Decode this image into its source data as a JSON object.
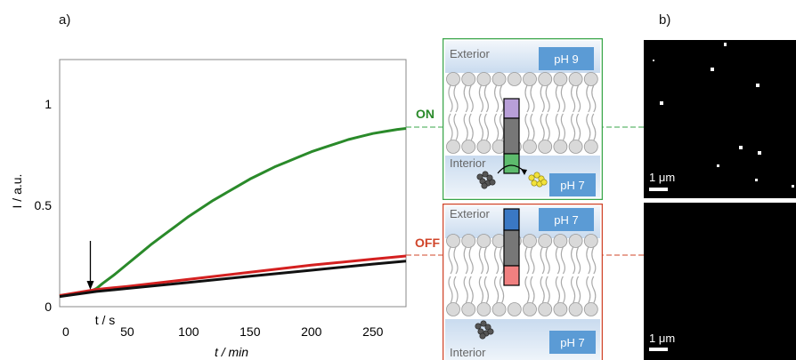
{
  "panel_a_label": "a)",
  "panel_b_label": "b)",
  "chart_data": {
    "type": "line",
    "xlabel": "t / min",
    "ylabel": "I / a.u.",
    "x_ticks": [
      0,
      50,
      100,
      150,
      200,
      250
    ],
    "y_ticks": [
      0,
      0.5,
      1
    ],
    "xlim": [
      -5,
      277
    ],
    "ylim": [
      0,
      1.22
    ],
    "grid": false,
    "annotation_arrow_label": "t / s",
    "annotation_arrow_x": 20,
    "series": [
      {
        "color": "#2a8a2a",
        "x": [
          -5,
          5,
          10,
          15,
          20,
          25,
          30,
          40,
          50,
          60,
          70,
          80,
          90,
          100,
          110,
          120,
          130,
          140,
          150,
          160,
          170,
          180,
          190,
          200,
          210,
          220,
          230,
          240,
          250,
          260,
          270,
          277
        ],
        "values": [
          0.055,
          0.06,
          0.065,
          0.07,
          0.075,
          0.09,
          0.115,
          0.16,
          0.21,
          0.26,
          0.31,
          0.355,
          0.4,
          0.445,
          0.485,
          0.525,
          0.56,
          0.595,
          0.63,
          0.66,
          0.69,
          0.715,
          0.74,
          0.765,
          0.785,
          0.805,
          0.825,
          0.84,
          0.855,
          0.865,
          0.875,
          0.88
        ]
      },
      {
        "color": "#d42020",
        "x": [
          -5,
          25,
          50,
          100,
          150,
          200,
          250,
          277
        ],
        "values": [
          0.055,
          0.085,
          0.1,
          0.135,
          0.17,
          0.205,
          0.235,
          0.25
        ]
      },
      {
        "color": "#111111",
        "x": [
          -5,
          25,
          50,
          100,
          150,
          200,
          250,
          277
        ],
        "values": [
          0.05,
          0.075,
          0.09,
          0.12,
          0.15,
          0.18,
          0.21,
          0.225
        ]
      }
    ]
  },
  "state_labels": {
    "on": "ON",
    "off": "OFF"
  },
  "state_colors": {
    "on": "#2a8a2a",
    "off": "#d0452a"
  },
  "schematic_on": {
    "exterior_label": "Exterior",
    "interior_label": "Interior",
    "exterior_ph": "pH 9",
    "interior_ph": "pH 7",
    "border_color": "#3aa64a",
    "channel_colors": [
      "#b89fd8",
      "#777777",
      "#5dbb6d"
    ]
  },
  "schematic_off": {
    "exterior_label": "Exterior",
    "interior_label": "Interior",
    "exterior_ph": "pH 7",
    "interior_ph": "pH 7",
    "border_color": "#d0452a",
    "channel_colors": [
      "#3a78c4",
      "#777777",
      "#f08080"
    ]
  },
  "micrograph_top": {
    "scale_bar": "1 μm"
  },
  "micrograph_bottom": {
    "scale_bar": "1 μm"
  }
}
